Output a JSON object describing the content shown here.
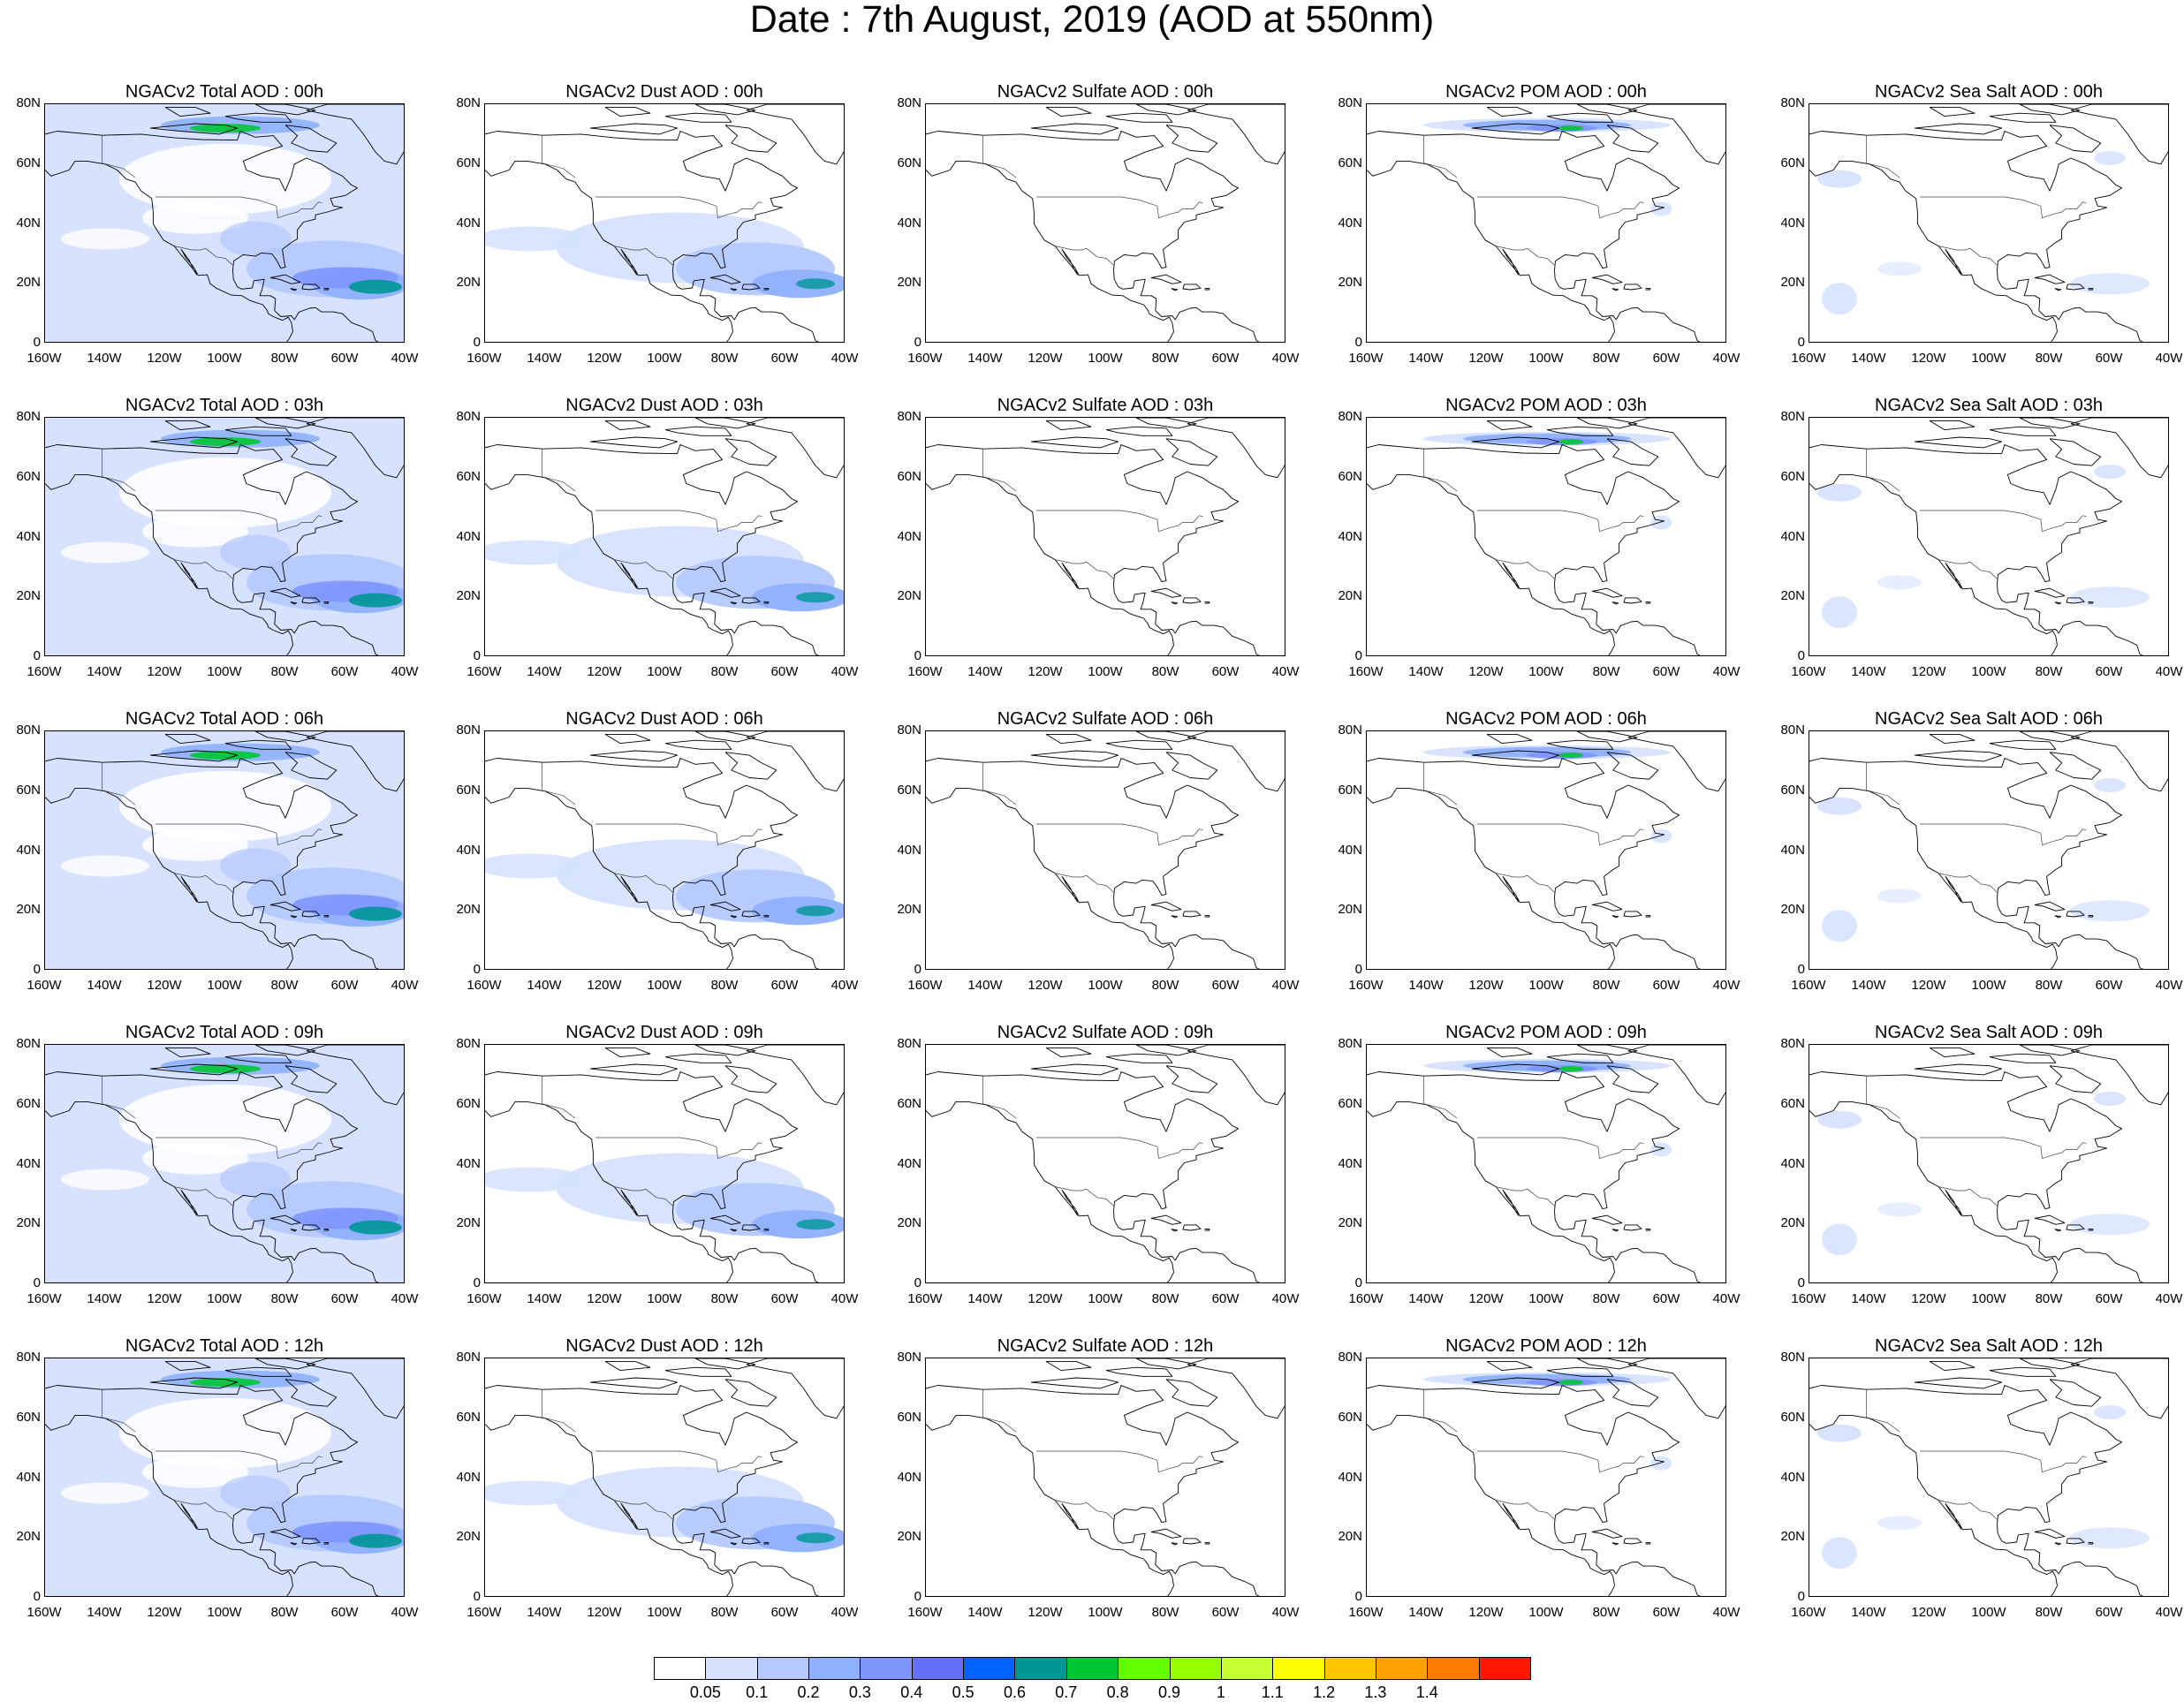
{
  "title": "Date : 7th August, 2019 (AOD at 550nm)",
  "lat_ticks": [
    "80N",
    "60N",
    "40N",
    "20N",
    "0"
  ],
  "lon_ticks": [
    "160W",
    "140W",
    "120W",
    "100W",
    "80W",
    "60W",
    "40W"
  ],
  "panel_titles": [
    [
      "NGACv2 Total AOD : 00h",
      "NGACv2 Dust AOD : 00h",
      "NGACv2 Sulfate AOD : 00h",
      "NGACv2 POM AOD : 00h",
      "NGACv2 Sea Salt AOD : 00h"
    ],
    [
      "NGACv2 Total AOD : 03h",
      "NGACv2 Dust AOD : 03h",
      "NGACv2 Sulfate AOD : 03h",
      "NGACv2 POM AOD : 03h",
      "NGACv2 Sea Salt AOD : 03h"
    ],
    [
      "NGACv2 Total AOD : 06h",
      "NGACv2 Dust AOD : 06h",
      "NGACv2 Sulfate AOD : 06h",
      "NGACv2 POM AOD : 06h",
      "NGACv2 Sea Salt AOD : 06h"
    ],
    [
      "NGACv2 Total AOD : 09h",
      "NGACv2 Dust AOD : 09h",
      "NGACv2 Sulfate AOD : 09h",
      "NGACv2 POM AOD : 09h",
      "NGACv2 Sea Salt  AOD : 09h"
    ],
    [
      "NGACv2 Total AOD  : 12h",
      "NGACv2 Dust AOD : 12h",
      "NGACv2 Sulfate AOD : 12h",
      "NGACv2 POM  AOD : 12h",
      "NGACv2 Sea Salt  AOD : 12h"
    ]
  ],
  "colorbar": {
    "labels": [
      "0.05",
      "0.1",
      "0.2",
      "0.3",
      "0.4",
      "0.5",
      "0.6",
      "0.7",
      "0.8",
      "0.9",
      "1",
      "1.1",
      "1.2",
      "1.3",
      "1.4"
    ],
    "colors": [
      "#ffffff",
      "#d6e2ff",
      "#b5c9ff",
      "#8fb0ff",
      "#7f96ff",
      "#6370f8",
      "#0063ff",
      "#009696",
      "#00c633",
      "#63ff00",
      "#96ff00",
      "#c6ff33",
      "#ffff00",
      "#ffc600",
      "#ffa000",
      "#ff7c00",
      "#ff1900"
    ]
  },
  "species_intensity": {
    "Total": 1.0,
    "Dust": 0.75,
    "Sulfate": 0.0,
    "POM": 0.55,
    "Sea Salt": 0.2
  },
  "map_colors": {
    "coast": "#000000",
    "light": "#d6e2ff",
    "mid": "#b5c9ff",
    "medium": "#8fb0ff",
    "strong": "#7f96ff",
    "peak": "#009696",
    "green": "#00c633"
  }
}
